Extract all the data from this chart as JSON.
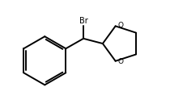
{
  "background_color": "#ffffff",
  "line_color": "#000000",
  "line_width": 1.4,
  "text_color": "#000000",
  "br_label": "Br",
  "o_label_1": "O",
  "o_label_2": "O",
  "br_font_size": 7.0,
  "o_font_size": 6.5,
  "fig_width": 2.1,
  "fig_height": 1.34,
  "dpi": 100,
  "xlim": [
    0,
    10
  ],
  "ylim": [
    0,
    6.4
  ]
}
